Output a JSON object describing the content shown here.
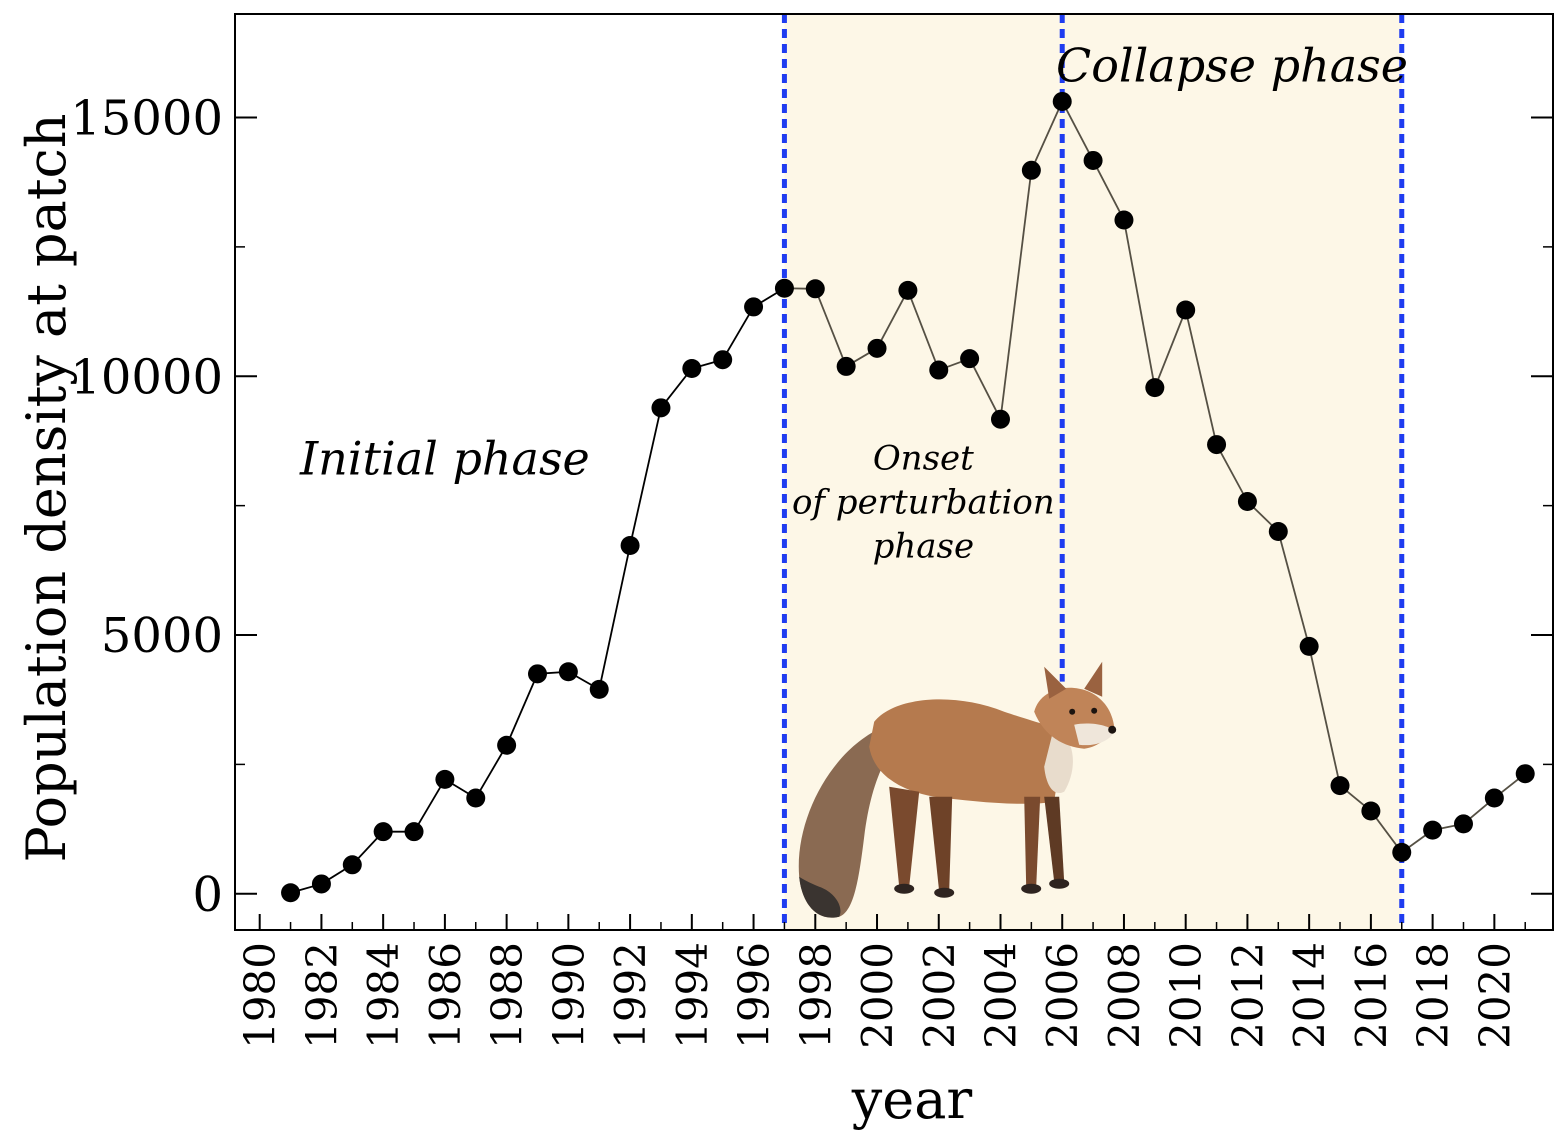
{
  "chart_data": {
    "type": "line",
    "xlabel": "year",
    "ylabel": "Population density at patch",
    "xlim": [
      1979.2,
      2021.9
    ],
    "ylim": [
      -700,
      17000
    ],
    "x_ticks": [
      1980,
      1982,
      1984,
      1986,
      1988,
      1990,
      1992,
      1994,
      1996,
      1998,
      2000,
      2002,
      2004,
      2006,
      2008,
      2010,
      2012,
      2014,
      2016,
      2018,
      2020
    ],
    "y_ticks": [
      0,
      5000,
      10000,
      15000
    ],
    "grid": false,
    "series": [
      {
        "x": [
          1981,
          1982,
          1983,
          1984,
          1985,
          1986,
          1987,
          1988,
          1989,
          1990,
          1991,
          1992,
          1993,
          1994,
          1995,
          1996,
          1997,
          1998,
          1999,
          2000,
          2001,
          2002,
          2003,
          2004,
          2005,
          2006,
          2007,
          2008,
          2009,
          2010,
          2011,
          2012,
          2013,
          2014,
          2015,
          2016,
          2017,
          2018,
          2019,
          2020,
          2021
        ],
        "y": [
          20,
          190,
          560,
          1200,
          1200,
          2210,
          1850,
          2870,
          4250,
          4290,
          3950,
          6730,
          9390,
          10150,
          10320,
          11340,
          11700,
          11690,
          10190,
          10540,
          11660,
          10120,
          10340,
          9170,
          13980,
          15310,
          14170,
          13020,
          9780,
          11280,
          8680,
          7580,
          7000,
          4780,
          2090,
          1600,
          800,
          1230,
          1350,
          1850,
          2320
        ]
      }
    ],
    "phase_boundaries": [
      1997,
      2006,
      2017
    ],
    "shaded_range": [
      1997,
      2017
    ],
    "annotations": [
      {
        "text": "Initial phase",
        "x": 1986,
        "y": 8100
      },
      {
        "lines": [
          "Onset",
          "of perturbation",
          "phase"
        ],
        "x": 2001.5,
        "y": 8200
      },
      {
        "text": "Collapse phase",
        "x": 2011.5,
        "y": 15700
      }
    ],
    "image": {
      "icon": "red-fox-icon",
      "x_center": 2002.5,
      "y_bottom": -250
    },
    "colors": {
      "shade": "#fdf7e7",
      "boundary": "#1f3cf0",
      "line_initial": "#000000",
      "line_later": "#555044",
      "marker": "#000000"
    }
  }
}
